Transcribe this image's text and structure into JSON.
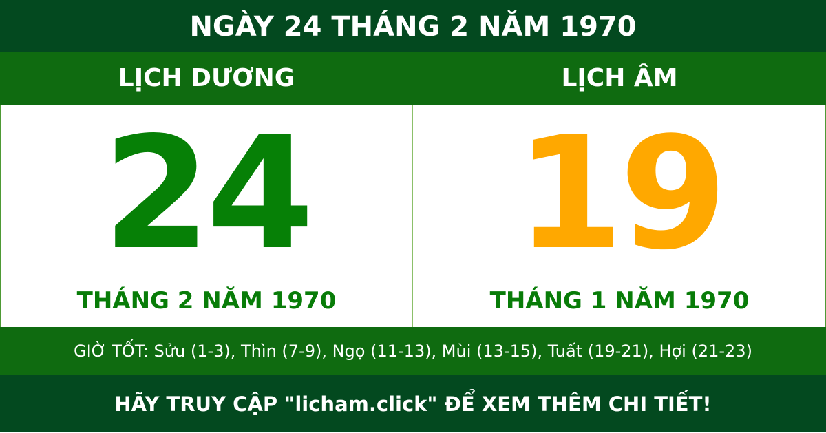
{
  "title": "NGÀY 24 THÁNG 2 NĂM 1970",
  "solar": {
    "label": "LỊCH DƯƠNG",
    "day": "24",
    "month_year": "THÁNG 2 NĂM 1970"
  },
  "lunar": {
    "label": "LỊCH ÂM",
    "day": "19",
    "month_year": "THÁNG 1 NĂM 1970"
  },
  "good_hours": "GIỜ TỐT: Sửu (1-3), Thìn (7-9), Ngọ (11-13), Mùi (13-15), Tuất (19-21), Hợi (21-23)",
  "footer": "HÃY TRUY CẬP \"licham.click\" ĐỂ XEM THÊM CHI TIẾT!",
  "colors": {
    "dark_green": "#03491f",
    "green": "#0f6b10",
    "solar_day": "#068006",
    "lunar_day": "#ffa800"
  }
}
